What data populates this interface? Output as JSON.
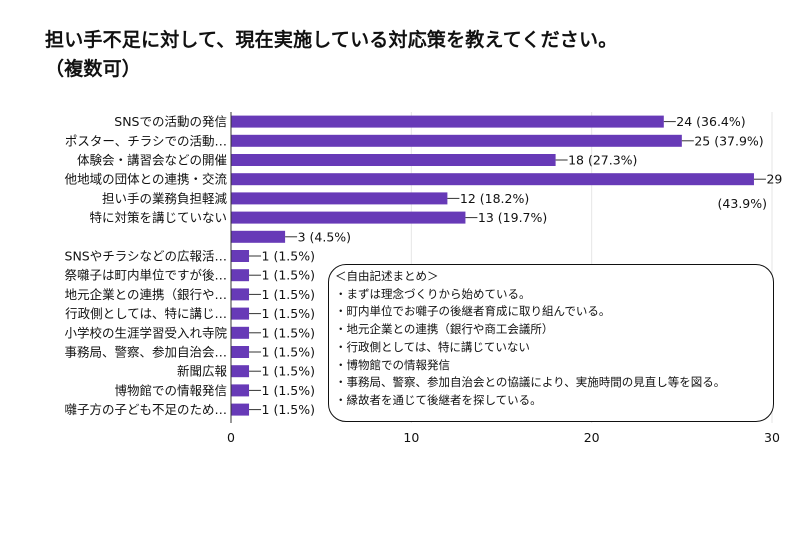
{
  "title": {
    "line1": "担い手不足に対して、現在実施している対応策を教えてください。",
    "line2": "（複数可）"
  },
  "chart_data": {
    "type": "bar",
    "orientation": "horizontal",
    "title": "担い手不足に対して、現在実施している対応策を教えてください。（複数可）",
    "categories": [
      "SNSでの活動の発信",
      "ポスター、チラシでの活動…",
      "体験会・講習会などの開催",
      "他地域の団体との連携・交流",
      "担い手の業務負担軽減",
      "特に対策を講じていない",
      "",
      "SNSやチラシなどの広報活…",
      "祭囃子は町内単位ですが後…",
      "地元企業との連携（銀行や…",
      "行政側としては、特に講じ…",
      "小学校の生涯学習受入れ寺院",
      "事務局、警察、参加自治会…",
      "新聞広報",
      "博物館での情報発信",
      "囃子方の子ども不足のため…"
    ],
    "values": [
      24,
      25,
      18,
      29,
      12,
      13,
      3,
      1,
      1,
      1,
      1,
      1,
      1,
      1,
      1,
      1
    ],
    "labels": [
      "24 (36.4%)",
      "25 (37.9%)",
      "18 (27.3%)",
      "29",
      "12 (18.2%)",
      "13 (19.7%)",
      "3 (4.5%)",
      "1 (1.5%)",
      "1 (1.5%)",
      "1 (1.5%)",
      "1 (1.5%)",
      "1 (1.5%)",
      "1 (1.5%)",
      "1 (1.5%)",
      "1 (1.5%)",
      "1 (1.5%)"
    ],
    "extra_labels": [
      {
        "index": 3,
        "text": "(43.9%)"
      }
    ],
    "xticks": [
      0,
      10,
      20,
      30
    ],
    "xlim": [
      0,
      30
    ],
    "bar_color": "#673ab7",
    "xlabel": "",
    "ylabel": ""
  },
  "notes": {
    "heading": "＜自由記述まとめ＞",
    "items": [
      "・まずは理念づくりから始めている。",
      "・町内単位でお囃子の後継者育成に取り組んでいる。",
      "・地元企業との連携（銀行や商工会議所）",
      "・行政側としては、特に講じていない",
      "・博物館での情報発信",
      "・事務局、警察、参加自治会との協議により、実施時間の見直し等を図る。",
      "・縁故者を通じて後継者を探している。"
    ]
  }
}
